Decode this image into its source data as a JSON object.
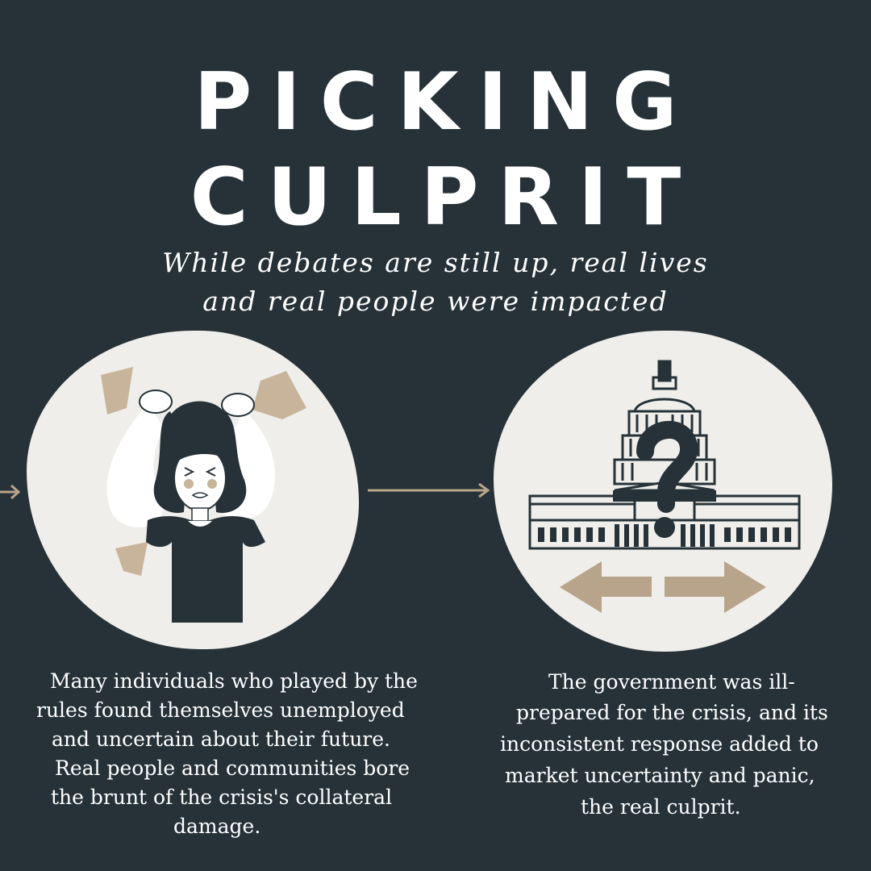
{
  "title": {
    "line1": "PICKING",
    "line2": "CULPRIT"
  },
  "subtitle": {
    "line1": "While debates are still up, real lives",
    "line2": "and real people were impacted"
  },
  "left_panel": {
    "illustration": "stressed-woman-pulling-hair-icon",
    "caption_lines": [
      "Many individuals who played by the",
      "rules found themselves unemployed",
      "and uncertain about their future.",
      "Real people and communities bore",
      "the brunt of the crisis's collateral",
      "damage."
    ]
  },
  "right_panel": {
    "illustration": "capitol-building-question-mark-icon",
    "caption_lines": [
      "The government was ill-",
      "prepared for the crisis, and its",
      "inconsistent response added to",
      "market uncertainty and panic,",
      "the real culprit."
    ]
  },
  "colors": {
    "background": "#263238",
    "blob": "#efeeea",
    "accent": "#b8a48a",
    "text": "#ffffff",
    "ink": "#263238"
  }
}
